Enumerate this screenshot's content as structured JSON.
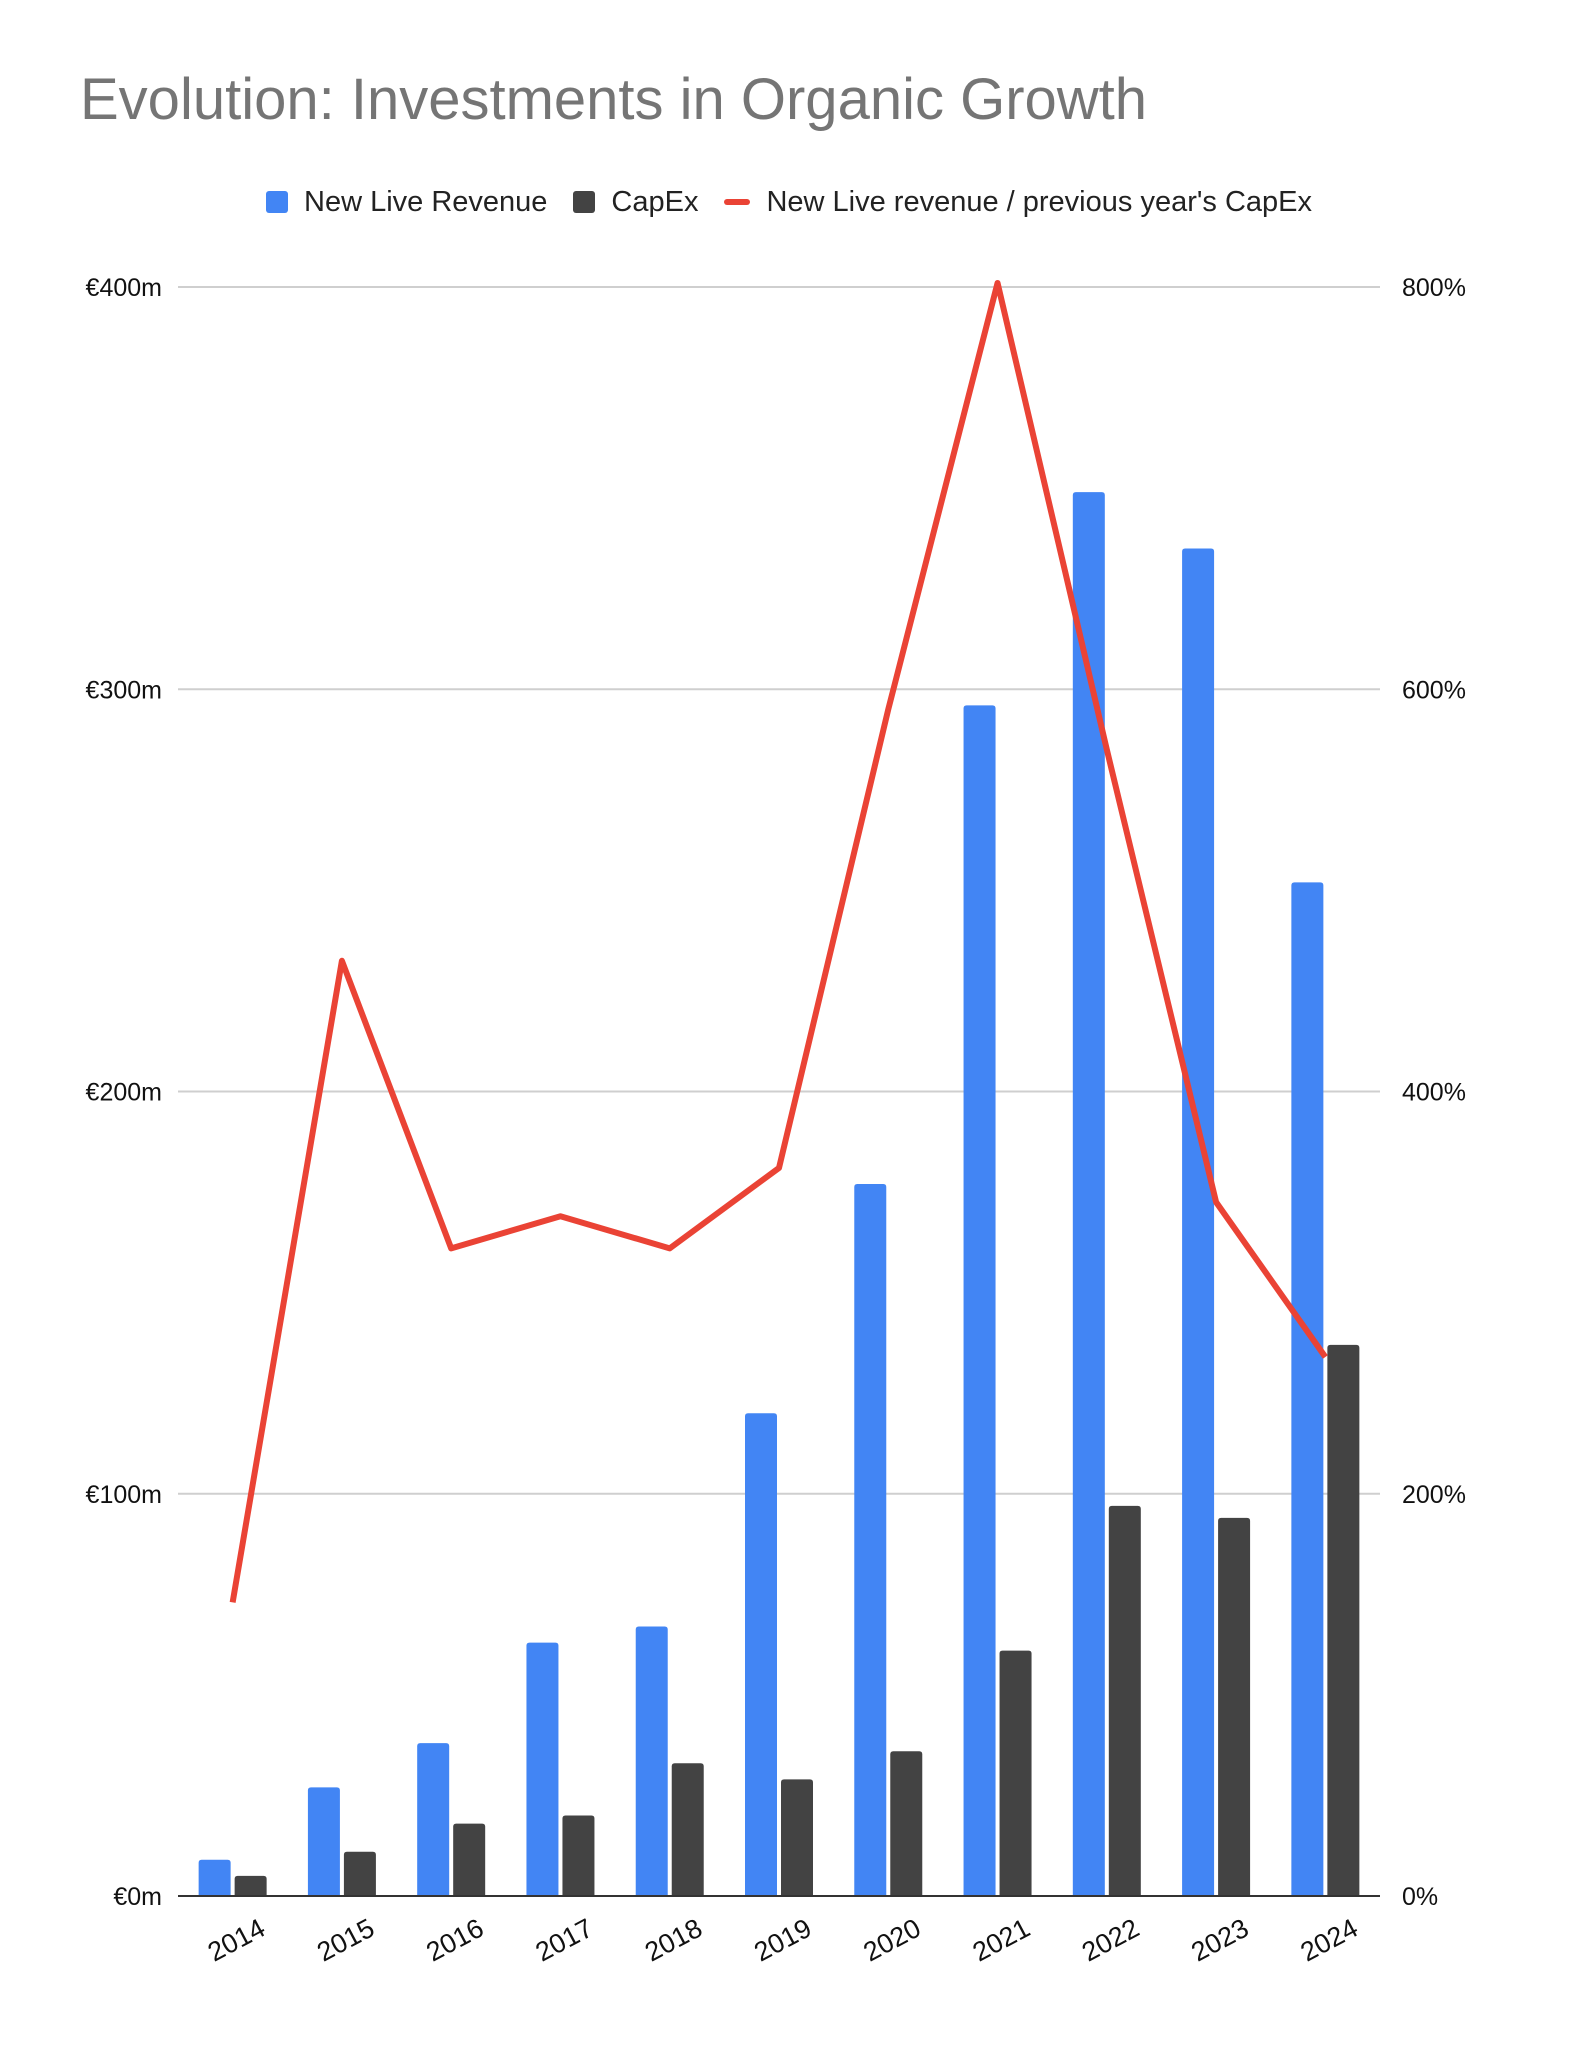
{
  "chart_data": {
    "type": "bar",
    "title": "Evolution: Investments in Organic Growth",
    "categories": [
      "2014",
      "2015",
      "2016",
      "2017",
      "2018",
      "2019",
      "2020",
      "2021",
      "2022",
      "2023",
      "2024"
    ],
    "series": [
      {
        "name": "New Live Revenue",
        "type": "bar",
        "axis": "left",
        "color": "#4285F4",
        "values": [
          9,
          27,
          38,
          63,
          67,
          120,
          177,
          296,
          349,
          335,
          252
        ]
      },
      {
        "name": "CapEx",
        "type": "bar",
        "axis": "left",
        "color": "#434343",
        "values": [
          5,
          11,
          18,
          20,
          33,
          29,
          36,
          61,
          97,
          94,
          137
        ]
      },
      {
        "name": "New Live revenue / previous year's CapEx",
        "type": "line",
        "axis": "right",
        "color": "#EA4335",
        "values": [
          146,
          465,
          322,
          338,
          322,
          362,
          590,
          802,
          570,
          345,
          268
        ]
      }
    ],
    "y_left": {
      "ylim": [
        0,
        400
      ],
      "ticks": [
        0,
        100,
        200,
        300,
        400
      ],
      "tick_labels": [
        "€0m",
        "€100m",
        "€200m",
        "€300m",
        "€400m"
      ]
    },
    "y_right": {
      "ylim": [
        0,
        800
      ],
      "ticks": [
        0,
        200,
        400,
        600,
        800
      ],
      "tick_labels": [
        "0%",
        "200%",
        "400%",
        "600%",
        "800%"
      ]
    },
    "xlabel": "",
    "ylabel": "",
    "grid": true,
    "legend": "top-center"
  }
}
